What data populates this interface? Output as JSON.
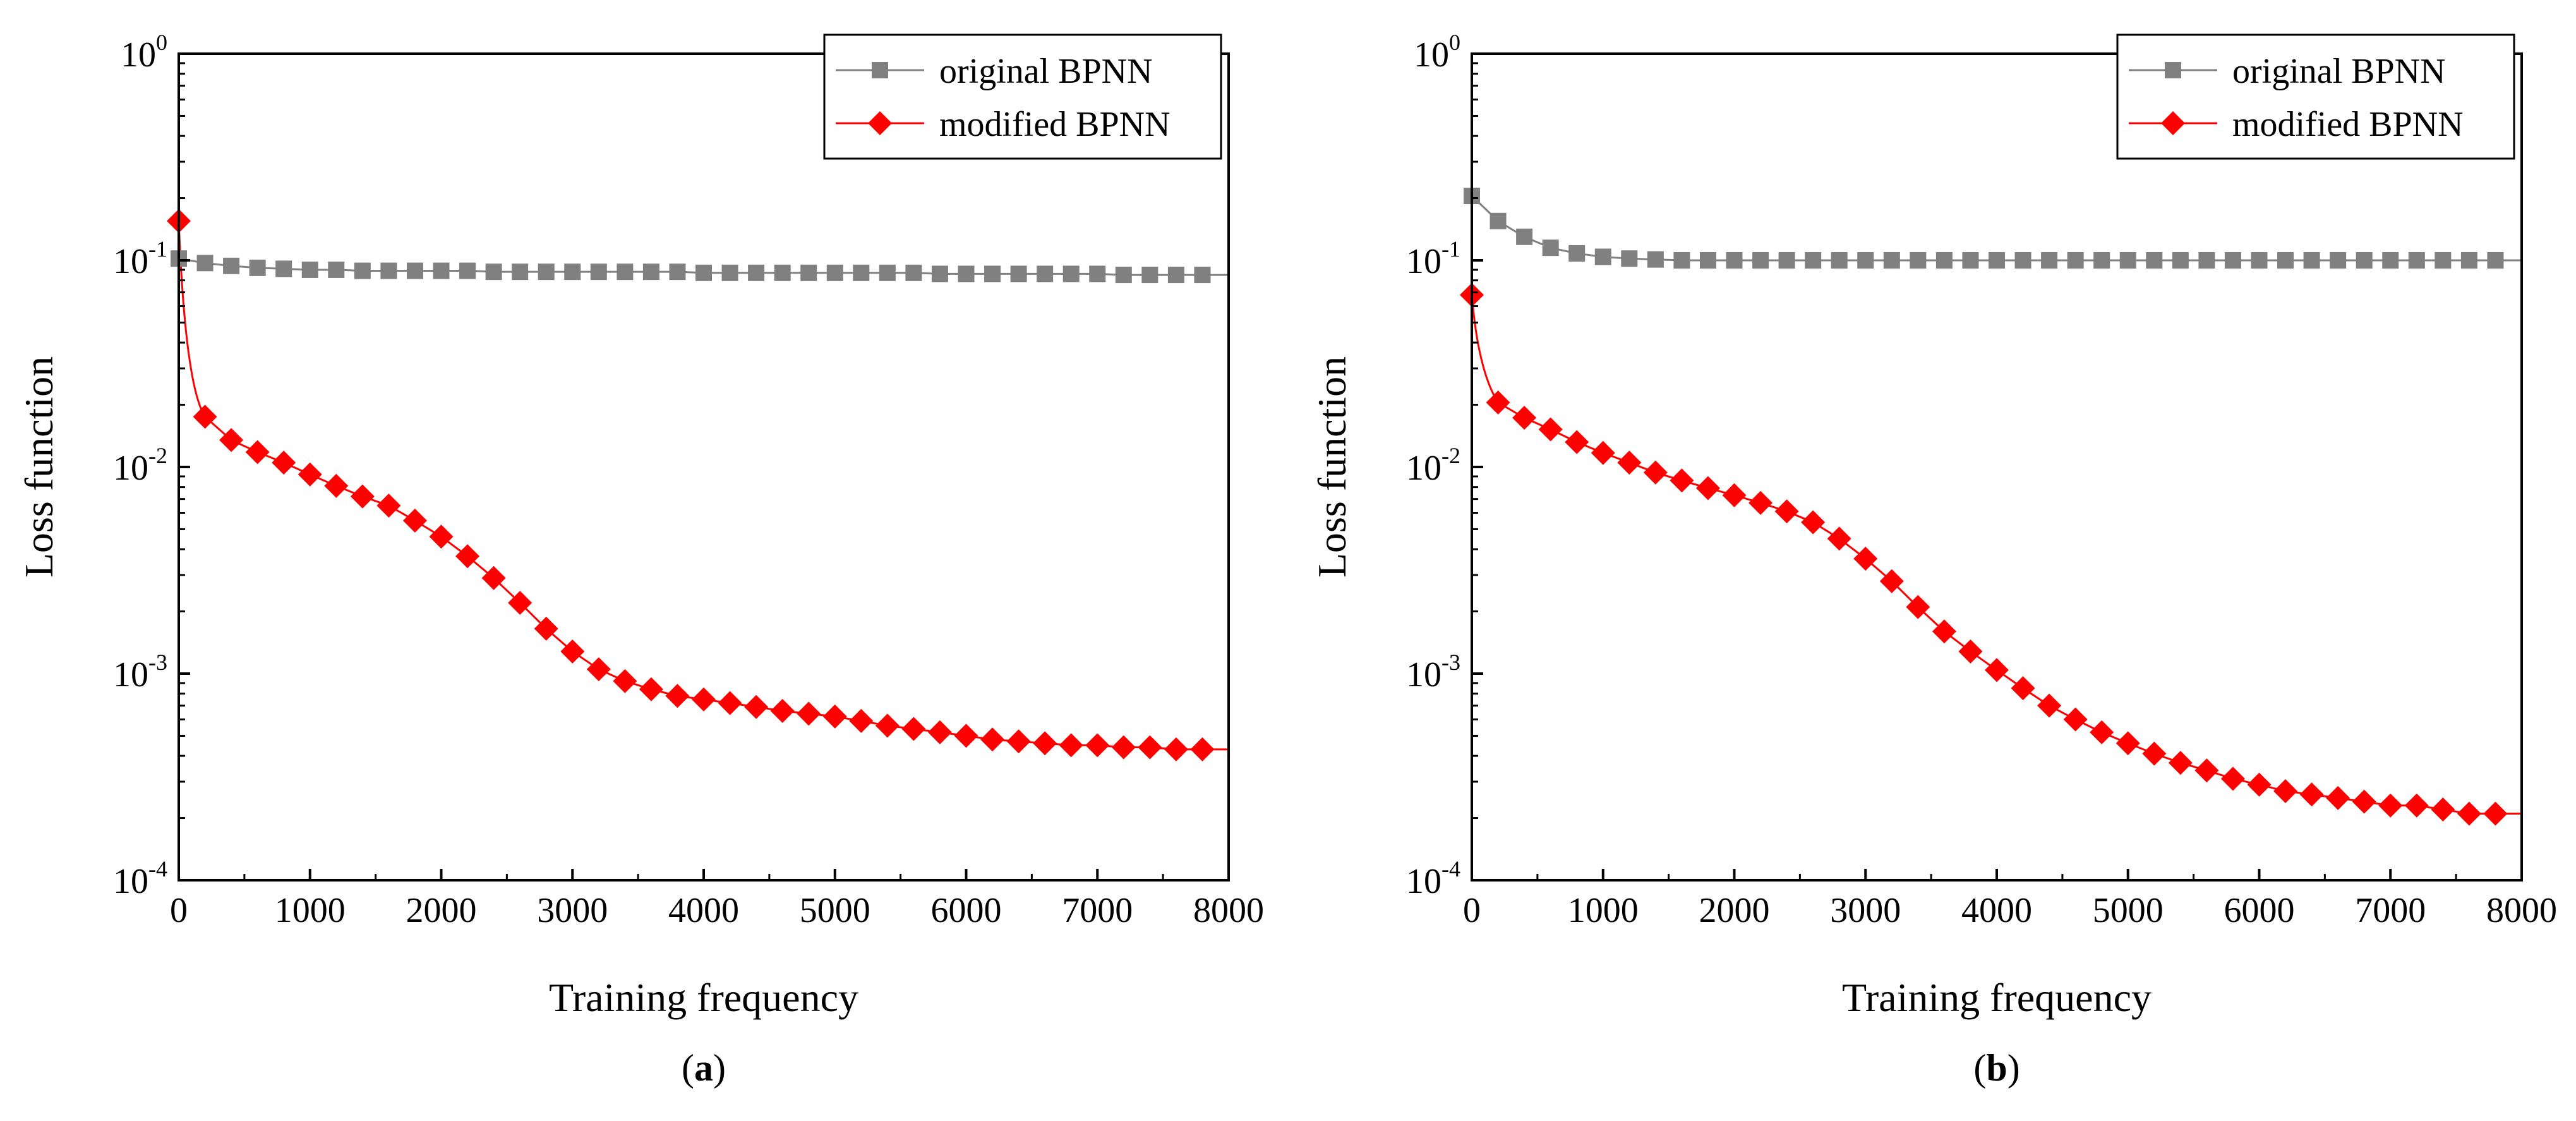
{
  "chart_data": [
    {
      "type": "line",
      "panel_label": "a",
      "xlabel": "Training frequency",
      "ylabel": "Loss function",
      "xlim": [
        0,
        8000
      ],
      "ylim": [
        0.0001,
        1
      ],
      "yscale": "log",
      "xticks": [
        0,
        1000,
        2000,
        3000,
        4000,
        5000,
        6000,
        7000,
        8000
      ],
      "yticks": [
        {
          "base": "10",
          "exp": "-4",
          "value": 0.0001
        },
        {
          "base": "10",
          "exp": "-3",
          "value": 0.001
        },
        {
          "base": "10",
          "exp": "-2",
          "value": 0.01
        },
        {
          "base": "10",
          "exp": "-1",
          "value": 0.1
        },
        {
          "base": "10",
          "exp": "0",
          "value": 1
        }
      ],
      "legend_position": "top-right",
      "x": [
        0,
        200,
        400,
        600,
        800,
        1000,
        1200,
        1400,
        1600,
        1800,
        2000,
        2200,
        2400,
        2600,
        2800,
        3000,
        3200,
        3400,
        3600,
        3800,
        4000,
        4200,
        4400,
        4600,
        4800,
        5000,
        5200,
        5400,
        5600,
        5800,
        6000,
        6200,
        6400,
        6600,
        6800,
        7000,
        7200,
        7400,
        7600,
        7800
      ],
      "series": [
        {
          "name": "original BPNN",
          "color": "#808080",
          "marker": "square",
          "values": [
            0.102,
            0.097,
            0.094,
            0.092,
            0.091,
            0.09,
            0.09,
            0.089,
            0.089,
            0.089,
            0.089,
            0.089,
            0.088,
            0.088,
            0.088,
            0.088,
            0.088,
            0.088,
            0.088,
            0.088,
            0.087,
            0.087,
            0.087,
            0.087,
            0.087,
            0.087,
            0.087,
            0.087,
            0.087,
            0.086,
            0.086,
            0.086,
            0.086,
            0.086,
            0.086,
            0.086,
            0.085,
            0.085,
            0.085,
            0.085
          ]
        },
        {
          "name": "modified BPNN",
          "color": "#ff0000",
          "marker": "diamond",
          "values": [
            0.155,
            0.0175,
            0.0135,
            0.0118,
            0.0105,
            0.0092,
            0.0081,
            0.0072,
            0.0065,
            0.0055,
            0.0046,
            0.0037,
            0.0029,
            0.0022,
            0.00165,
            0.00128,
            0.00105,
            0.00092,
            0.00084,
            0.00078,
            0.00075,
            0.00072,
            0.00069,
            0.00066,
            0.00064,
            0.00062,
            0.00059,
            0.00056,
            0.00054,
            0.00052,
            0.0005,
            0.00048,
            0.00047,
            0.00046,
            0.00045,
            0.00045,
            0.00044,
            0.00044,
            0.00043,
            0.00043
          ]
        }
      ]
    },
    {
      "type": "line",
      "panel_label": "b",
      "xlabel": "Training frequency",
      "ylabel": "Loss function",
      "xlim": [
        0,
        8000
      ],
      "ylim": [
        0.0001,
        1
      ],
      "yscale": "log",
      "xticks": [
        0,
        1000,
        2000,
        3000,
        4000,
        5000,
        6000,
        7000,
        8000
      ],
      "yticks": [
        {
          "base": "10",
          "exp": "-4",
          "value": 0.0001
        },
        {
          "base": "10",
          "exp": "-3",
          "value": 0.001
        },
        {
          "base": "10",
          "exp": "-2",
          "value": 0.01
        },
        {
          "base": "10",
          "exp": "-1",
          "value": 0.1
        },
        {
          "base": "10",
          "exp": "0",
          "value": 1
        }
      ],
      "legend_position": "top-right",
      "x": [
        0,
        200,
        400,
        600,
        800,
        1000,
        1200,
        1400,
        1600,
        1800,
        2000,
        2200,
        2400,
        2600,
        2800,
        3000,
        3200,
        3400,
        3600,
        3800,
        4000,
        4200,
        4400,
        4600,
        4800,
        5000,
        5200,
        5400,
        5600,
        5800,
        6000,
        6200,
        6400,
        6600,
        6800,
        7000,
        7200,
        7400,
        7600,
        7800
      ],
      "series": [
        {
          "name": "original BPNN",
          "color": "#808080",
          "marker": "square",
          "values": [
            0.205,
            0.155,
            0.13,
            0.115,
            0.108,
            0.104,
            0.102,
            0.101,
            0.1,
            0.1,
            0.1,
            0.1,
            0.1,
            0.1,
            0.1,
            0.1,
            0.1,
            0.1,
            0.1,
            0.1,
            0.1,
            0.1,
            0.1,
            0.1,
            0.1,
            0.1,
            0.1,
            0.1,
            0.1,
            0.1,
            0.1,
            0.1,
            0.1,
            0.1,
            0.1,
            0.1,
            0.1,
            0.1,
            0.1,
            0.1
          ]
        },
        {
          "name": "modified BPNN",
          "color": "#ff0000",
          "marker": "diamond",
          "values": [
            0.068,
            0.0205,
            0.0173,
            0.0152,
            0.0132,
            0.0117,
            0.0105,
            0.0094,
            0.0086,
            0.0079,
            0.0073,
            0.0067,
            0.0061,
            0.0054,
            0.0045,
            0.0036,
            0.0028,
            0.0021,
            0.0016,
            0.00128,
            0.00104,
            0.00085,
            0.0007,
            0.0006,
            0.00052,
            0.00046,
            0.00041,
            0.00037,
            0.00034,
            0.00031,
            0.00029,
            0.00027,
            0.00026,
            0.00025,
            0.00024,
            0.00023,
            0.00023,
            0.00022,
            0.00021,
            0.00021
          ]
        }
      ]
    }
  ]
}
